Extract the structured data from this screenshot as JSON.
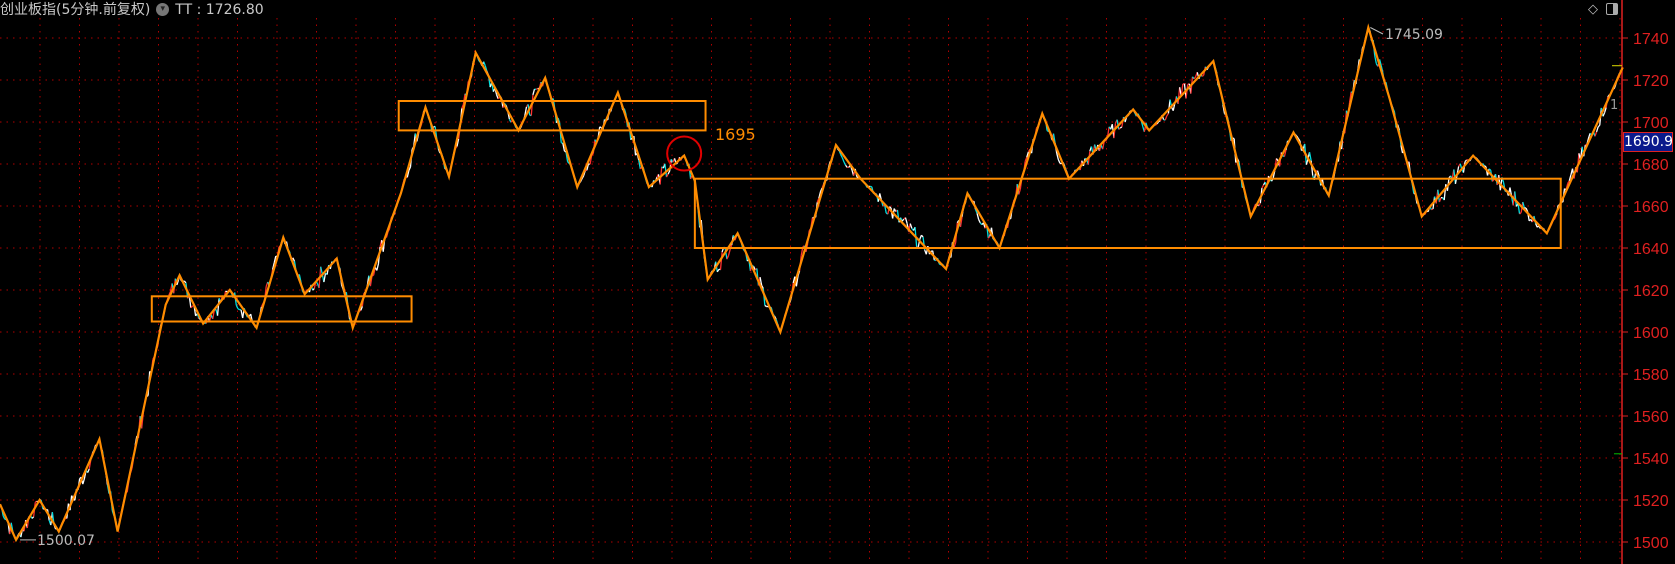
{
  "header": {
    "instrument": "创业板指(5分钟.前复权)",
    "indicator_label": "TT",
    "indicator_value": "1726.80"
  },
  "toolbar": {
    "icons": [
      "diamond-icon",
      "panel-toggle-icon"
    ]
  },
  "price_axis": {
    "current_price": "1690.9",
    "partial_label": "1"
  },
  "colors": {
    "grid": "#b00000",
    "axis": "#e02020",
    "zigzag": "#ff8c00",
    "up": "#ff3030",
    "down": "#00e0e0",
    "line": "#ffffff",
    "current_bg": "#0a1a8c",
    "marker": "#e00000"
  },
  "chart_data": {
    "type": "line",
    "title": "创业板指(5分钟.前复权)",
    "ylim": [
      1495,
      1750
    ],
    "yticks": [
      1500,
      1520,
      1540,
      1560,
      1580,
      1600,
      1620,
      1640,
      1660,
      1680,
      1700,
      1720,
      1740
    ],
    "grid": true,
    "annotations": {
      "high": "1745.09",
      "low": "1500.07",
      "level": "1695"
    },
    "zigzag": [
      [
        0,
        1518
      ],
      [
        15,
        1501
      ],
      [
        37,
        1520
      ],
      [
        55,
        1505
      ],
      [
        93,
        1549
      ],
      [
        110,
        1505
      ],
      [
        155,
        1613
      ],
      [
        168,
        1627
      ],
      [
        190,
        1604
      ],
      [
        215,
        1620
      ],
      [
        240,
        1602
      ],
      [
        265,
        1645
      ],
      [
        285,
        1618
      ],
      [
        315,
        1635
      ],
      [
        330,
        1602
      ],
      [
        375,
        1666
      ],
      [
        398,
        1707
      ],
      [
        420,
        1674
      ],
      [
        445,
        1733
      ],
      [
        485,
        1696
      ],
      [
        510,
        1721
      ],
      [
        540,
        1669
      ],
      [
        578,
        1714
      ],
      [
        607,
        1669
      ],
      [
        640,
        1684
      ],
      [
        650,
        1672
      ],
      [
        662,
        1625
      ],
      [
        690,
        1647
      ],
      [
        730,
        1600
      ],
      [
        782,
        1689
      ],
      [
        805,
        1673
      ],
      [
        885,
        1630
      ],
      [
        905,
        1666
      ],
      [
        935,
        1640
      ],
      [
        975,
        1704
      ],
      [
        1000,
        1673
      ],
      [
        1060,
        1706
      ],
      [
        1075,
        1696
      ],
      [
        1135,
        1729
      ],
      [
        1170,
        1655
      ],
      [
        1210,
        1695
      ],
      [
        1243,
        1665
      ],
      [
        1280,
        1745
      ],
      [
        1300,
        1711
      ],
      [
        1330,
        1655
      ],
      [
        1378,
        1684
      ],
      [
        1447,
        1647
      ],
      [
        1518,
        1726
      ]
    ],
    "boxes": [
      {
        "from": 142,
        "to": 385,
        "low": 1605,
        "high": 1617
      },
      {
        "from": 373,
        "to": 660,
        "low": 1696,
        "high": 1710
      },
      {
        "from": 650,
        "to": 1460,
        "low": 1640,
        "high": 1673
      }
    ],
    "marker": {
      "bar": 640,
      "price": 1685
    }
  }
}
